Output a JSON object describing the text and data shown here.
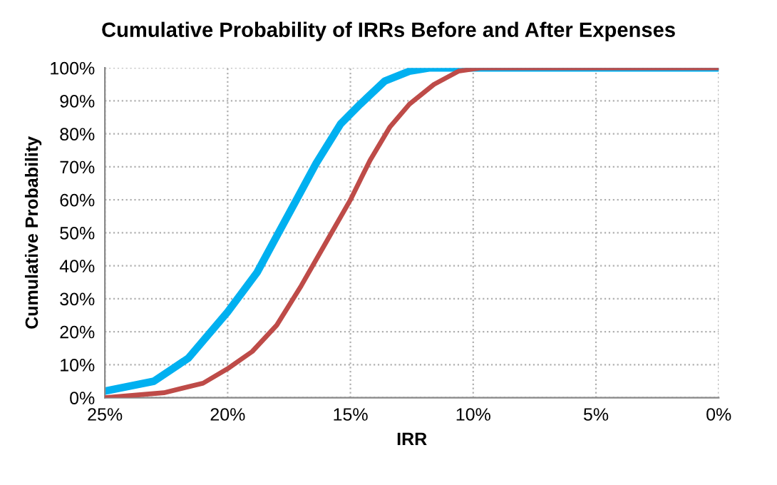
{
  "chart_data": {
    "type": "line",
    "title": "Cumulative Probability of IRRs Before and After Expenses",
    "xlabel": "IRR",
    "ylabel": "Cumulative Probability",
    "series": [
      {
        "color": "#00b0f0",
        "x": [
          25,
          23,
          21.6,
          20,
          18.8,
          18,
          17.2,
          16.4,
          15.4,
          14.6,
          13.6,
          12.6,
          11.8,
          0
        ],
        "values": [
          2,
          5,
          12,
          26,
          38,
          49,
          60,
          71,
          83,
          89,
          96,
          99,
          100,
          100
        ]
      },
      {
        "color": "#be4b48",
        "x": [
          25,
          22.6,
          21,
          20,
          19,
          18,
          17,
          16,
          15,
          14.2,
          13.4,
          12.6,
          11.6,
          10.6,
          9.7,
          0
        ],
        "values": [
          0,
          1.5,
          4.4,
          8.8,
          14,
          22,
          34,
          47,
          60,
          72,
          82,
          89,
          95,
          99,
          100,
          100
        ]
      }
    ],
    "xlim": [
      25,
      0
    ],
    "xticks": [
      {
        "value": 25,
        "label": "25%"
      },
      {
        "value": 20,
        "label": "20%"
      },
      {
        "value": 15,
        "label": "15%"
      },
      {
        "value": 10,
        "label": "10%"
      },
      {
        "value": 5,
        "label": "5%"
      },
      {
        "value": 0,
        "label": "0%"
      }
    ],
    "ylim": [
      0,
      100
    ],
    "yticks": [
      {
        "value": 0,
        "label": "0%"
      },
      {
        "value": 10,
        "label": "10%"
      },
      {
        "value": 20,
        "label": "20%"
      },
      {
        "value": 30,
        "label": "30%"
      },
      {
        "value": 40,
        "label": "40%"
      },
      {
        "value": 50,
        "label": "50%"
      },
      {
        "value": 60,
        "label": "60%"
      },
      {
        "value": 70,
        "label": "70%"
      },
      {
        "value": 80,
        "label": "80%"
      },
      {
        "value": 90,
        "label": "90%"
      },
      {
        "value": 100,
        "label": "100%"
      }
    ],
    "grid": true,
    "line_style": "solid"
  }
}
